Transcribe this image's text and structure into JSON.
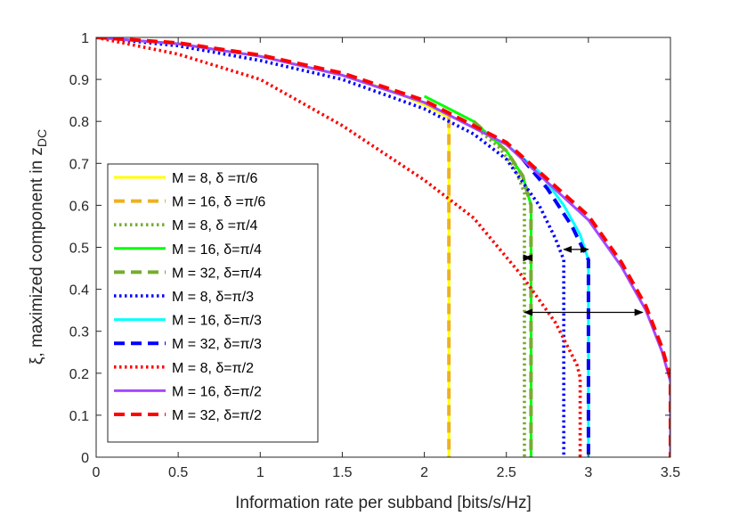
{
  "chart_data": {
    "type": "line",
    "title": "",
    "xlabel": "Information rate per subband [bits/s/Hz]",
    "ylabel": {
      "prefix": "ξ, maximized component in z",
      "subscript": "DC"
    },
    "xlim": [
      0,
      3.5
    ],
    "ylim": [
      0,
      1
    ],
    "xticks": [
      0,
      0.5,
      1,
      1.5,
      2,
      2.5,
      3,
      3.5
    ],
    "xtick_labels": [
      "0",
      "0.5",
      "1",
      "1.5",
      "2",
      "2.5",
      "3",
      "3.5"
    ],
    "yticks": [
      0,
      0.1,
      0.2,
      0.3,
      0.4,
      0.5,
      0.6,
      0.7,
      0.8,
      0.9,
      1
    ],
    "ytick_labels": [
      "0",
      "0.1",
      "0.2",
      "0.3",
      "0.4",
      "0.5",
      "0.6",
      "0.7",
      "0.8",
      "0.9",
      "1"
    ],
    "grid": false,
    "legend_position": "left",
    "series": [
      {
        "name": "M = 8, δ =π/6",
        "color": "#ffff00",
        "style": "solid",
        "x": [
          0,
          0.5,
          1,
          1.5,
          1.8,
          2.0,
          2.15,
          2.15
        ],
        "y": [
          1,
          0.985,
          0.955,
          0.91,
          0.873,
          0.84,
          0.81,
          0
        ]
      },
      {
        "name": "M = 16, δ =π/6",
        "color": "#edb120",
        "style": "dashed",
        "x": [
          2.15,
          2.15
        ],
        "y": [
          0.81,
          0
        ]
      },
      {
        "name": "M = 8, δ =π/4",
        "color": "#77ac30",
        "style": "dotted",
        "x": [
          2.3,
          2.45,
          2.55,
          2.61,
          2.61
        ],
        "y": [
          0.79,
          0.74,
          0.69,
          0.63,
          0
        ]
      },
      {
        "name": "M = 16, δ=π/4",
        "color": "#00ff00",
        "style": "solid",
        "x": [
          2.0,
          2.3,
          2.5,
          2.6,
          2.65,
          2.65
        ],
        "y": [
          0.86,
          0.8,
          0.73,
          0.67,
          0.6,
          0
        ]
      },
      {
        "name": "M = 32, δ=π/4",
        "color": "#77ac30",
        "style": "dashed",
        "x": [
          2.3,
          2.5,
          2.6,
          2.65,
          2.65
        ],
        "y": [
          0.8,
          0.73,
          0.67,
          0.6,
          0
        ]
      },
      {
        "name": "M = 8, δ=π/3",
        "color": "#0000ff",
        "style": "dotted",
        "x": [
          0,
          0.5,
          1,
          1.5,
          2,
          2.3,
          2.5,
          2.7,
          2.8,
          2.85,
          2.85
        ],
        "y": [
          1,
          0.98,
          0.945,
          0.9,
          0.83,
          0.77,
          0.71,
          0.6,
          0.52,
          0.47,
          0
        ]
      },
      {
        "name": "M = 16, δ=π/3",
        "color": "#00ffff",
        "style": "solid",
        "x": [
          0,
          0.5,
          1,
          1.5,
          2,
          2.5,
          2.7,
          2.85,
          2.95,
          3.0,
          3.0
        ],
        "y": [
          1,
          0.985,
          0.955,
          0.91,
          0.845,
          0.745,
          0.68,
          0.6,
          0.53,
          0.47,
          0
        ]
      },
      {
        "name": "M = 32, δ=π/3",
        "color": "#0000ff",
        "style": "dashed",
        "x": [
          2.6,
          2.75,
          2.9,
          3.0,
          3.0
        ],
        "y": [
          0.71,
          0.64,
          0.55,
          0.47,
          0
        ]
      },
      {
        "name": "M = 8, δ=π/2",
        "color": "#ff0000",
        "style": "dotted",
        "x": [
          0,
          0.5,
          1,
          1.5,
          2,
          2.3,
          2.6,
          2.8,
          2.93,
          2.95,
          2.95
        ],
        "y": [
          1,
          0.96,
          0.9,
          0.79,
          0.66,
          0.57,
          0.43,
          0.32,
          0.22,
          0.19,
          0
        ]
      },
      {
        "name": "M = 16, δ=π/2",
        "color": "#a349ff",
        "style": "solid",
        "x": [
          0,
          0.5,
          1,
          1.5,
          2,
          2.5,
          3,
          3.2,
          3.35,
          3.45,
          3.5,
          3.5
        ],
        "y": [
          1,
          0.985,
          0.955,
          0.91,
          0.845,
          0.745,
          0.565,
          0.455,
          0.35,
          0.25,
          0.18,
          0
        ]
      },
      {
        "name": "M = 32, δ=π/2",
        "color": "#ff0000",
        "style": "dashed",
        "x": [
          0,
          0.5,
          1,
          1.5,
          2,
          2.5,
          3,
          3.2,
          3.35,
          3.45,
          3.5,
          3.5
        ],
        "y": [
          1,
          0.987,
          0.958,
          0.915,
          0.85,
          0.75,
          0.575,
          0.465,
          0.36,
          0.26,
          0.19,
          0
        ]
      }
    ],
    "annotations": [
      {
        "type": "double-arrow",
        "from": [
          2.61,
          0.475
        ],
        "to": [
          2.65,
          0.475
        ]
      },
      {
        "type": "double-arrow",
        "from": [
          2.85,
          0.495
        ],
        "to": [
          3.0,
          0.495
        ]
      },
      {
        "type": "double-arrow",
        "from": [
          2.61,
          0.345
        ],
        "to": [
          3.33,
          0.345
        ]
      }
    ]
  }
}
